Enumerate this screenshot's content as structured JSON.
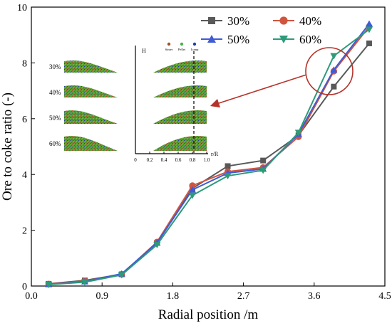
{
  "chart_data": {
    "type": "line",
    "xlabel": "Radial position /m",
    "ylabel": "Ore to coke ratio (-)",
    "xlim": [
      0.0,
      4.5
    ],
    "ylim": [
      0,
      10
    ],
    "xticks": [
      "0.0",
      "0.9",
      "1.8",
      "2.7",
      "3.6",
      "4.5"
    ],
    "yticks": [
      "0",
      "2",
      "4",
      "6",
      "8",
      "10"
    ],
    "x": [
      0.22,
      0.68,
      1.15,
      1.6,
      2.05,
      2.5,
      2.95,
      3.4,
      3.85,
      4.3
    ],
    "legend_position": "top-right",
    "series": [
      {
        "name": "30%",
        "marker": "square",
        "color": "#595959",
        "values": [
          0.08,
          0.2,
          0.42,
          1.55,
          3.5,
          4.3,
          4.5,
          5.4,
          7.15,
          8.7
        ]
      },
      {
        "name": "40%",
        "marker": "circle",
        "color": "#d0553f",
        "values": [
          0.07,
          0.18,
          0.42,
          1.58,
          3.6,
          4.1,
          4.25,
          5.35,
          7.7,
          9.3
        ]
      },
      {
        "name": "50%",
        "marker": "triangle-up",
        "color": "#3f5bd8",
        "values": [
          0.06,
          0.16,
          0.44,
          1.55,
          3.45,
          4.05,
          4.2,
          5.45,
          7.75,
          9.4
        ]
      },
      {
        "name": "60%",
        "marker": "triangle-down",
        "color": "#2e9a78",
        "values": [
          0.05,
          0.14,
          0.4,
          1.48,
          3.25,
          3.95,
          4.15,
          5.5,
          8.25,
          9.2
        ]
      }
    ],
    "annotation": {
      "type": "circle-with-arrow",
      "color": "#b5322a"
    },
    "inset": {
      "row_labels": [
        "30%",
        "40%",
        "50%",
        "60%"
      ],
      "y_axis_label": "H",
      "x_axis_label": "r/R",
      "x_ticks": [
        "0",
        "0.2",
        "0.4",
        "0.6",
        "0.8",
        "1.0"
      ],
      "legend": [
        {
          "label": "Sinter",
          "color": "#a0522d"
        },
        {
          "label": "Pellet",
          "color": "#4caf50"
        },
        {
          "label": "Lump",
          "color": "#1e3fa8"
        }
      ]
    }
  }
}
